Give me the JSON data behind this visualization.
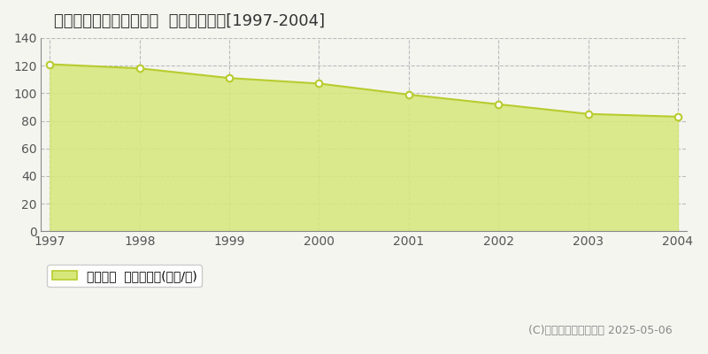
{
  "title": "大阪市住之江区東加賀屋  基準地価推移[1997-2004]",
  "years": [
    1997,
    1998,
    1999,
    2000,
    2001,
    2002,
    2003,
    2004
  ],
  "values": [
    121,
    118,
    111,
    107,
    99,
    92,
    85,
    83
  ],
  "ylim": [
    0,
    140
  ],
  "yticks": [
    0,
    20,
    40,
    60,
    80,
    100,
    120,
    140
  ],
  "line_color": "#b8cc30",
  "fill_color": "#d6e87a",
  "fill_alpha": 0.85,
  "marker_color": "#ffffff",
  "marker_edge_color": "#b8cc30",
  "background_color": "#f5f5f0",
  "plot_bg_color": "#f5f5f0",
  "grid_color": "#bbbbbb",
  "legend_label": "基準地価  平均坪単価(万円/坪)",
  "copyright_text": "(C)土地価格ドットコム 2025-05-06",
  "title_fontsize": 13,
  "tick_fontsize": 10,
  "legend_fontsize": 10,
  "copyright_fontsize": 9
}
